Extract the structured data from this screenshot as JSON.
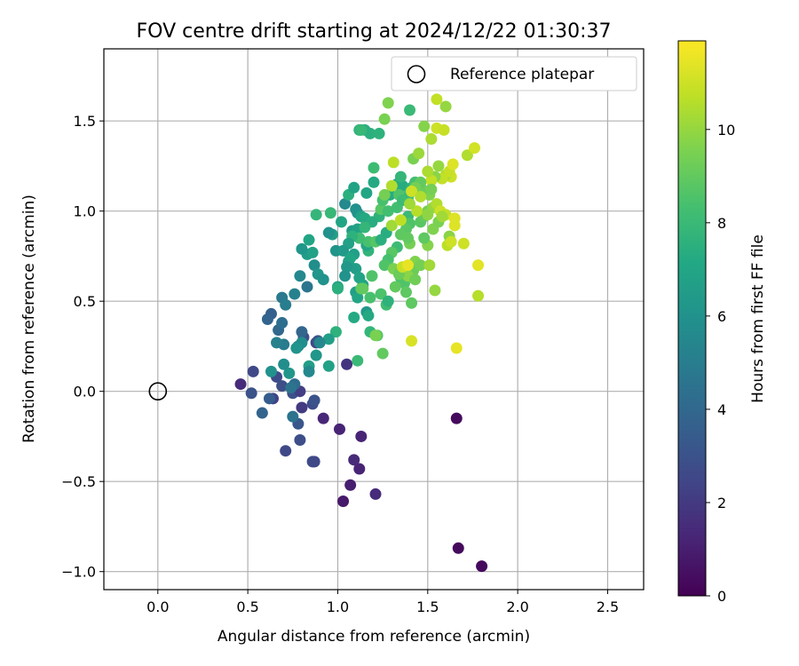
{
  "chart_data": {
    "type": "scatter",
    "title": "FOV centre drift starting at 2024/12/22 01:30:37",
    "xlabel": "Angular distance from reference (arcmin)",
    "ylabel": "Rotation from reference (arcmin)",
    "xlim": [
      -0.3,
      2.7
    ],
    "ylim": [
      -1.1,
      1.9
    ],
    "x_ticks": [
      0.0,
      0.5,
      1.0,
      1.5,
      2.0,
      2.5
    ],
    "x_tick_labels": [
      "0.0",
      "0.5",
      "1.0",
      "1.5",
      "2.0",
      "2.5"
    ],
    "y_ticks": [
      -1.0,
      -0.5,
      0.0,
      0.5,
      1.0,
      1.5
    ],
    "y_tick_labels": [
      "−1.0",
      "−0.5",
      "0.0",
      "0.5",
      "1.0",
      "1.5"
    ],
    "grid": true,
    "legend": {
      "placement": "upper-right",
      "entries": [
        {
          "label": "Reference platepar",
          "marker": "open-circle"
        }
      ]
    },
    "reference_point": {
      "x": 0.0,
      "y": 0.0
    },
    "colorbar": {
      "label": "Hours from first FF file",
      "colormap": "viridis",
      "range": [
        0,
        11.9
      ],
      "ticks": [
        0,
        2,
        4,
        6,
        8,
        10
      ],
      "tick_labels": [
        "0",
        "2",
        "4",
        "6",
        "8",
        "10"
      ]
    },
    "series": [
      {
        "marker": "filled-circle",
        "points": [
          [
            1.66,
            -0.15,
            0.3
          ],
          [
            1.67,
            -0.87,
            0.3
          ],
          [
            1.8,
            -0.97,
            0.3
          ],
          [
            1.03,
            -0.61,
            0.8
          ],
          [
            1.07,
            -0.52,
            1.0
          ],
          [
            1.12,
            -0.43,
            1.2
          ],
          [
            1.09,
            -0.38,
            1.4
          ],
          [
            1.21,
            -0.57,
            1.5
          ],
          [
            1.13,
            -0.25,
            1.2
          ],
          [
            1.01,
            -0.21,
            1.2
          ],
          [
            0.92,
            -0.15,
            1.3
          ],
          [
            1.05,
            0.15,
            1.8
          ],
          [
            0.46,
            0.04,
            1.5
          ],
          [
            0.53,
            0.11,
            2.6
          ],
          [
            0.52,
            -0.01,
            3.0
          ],
          [
            0.64,
            -0.04,
            2.3
          ],
          [
            0.66,
            0.08,
            2.7
          ],
          [
            0.69,
            0.03,
            2.8
          ],
          [
            0.75,
            -0.01,
            2.9
          ],
          [
            0.79,
            0.0,
            2.2
          ],
          [
            0.8,
            -0.09,
            2.0
          ],
          [
            0.86,
            -0.07,
            2.7
          ],
          [
            0.87,
            -0.05,
            3.0
          ],
          [
            0.78,
            -0.18,
            3.2
          ],
          [
            0.79,
            -0.27,
            2.8
          ],
          [
            0.71,
            -0.33,
            2.6
          ],
          [
            0.86,
            -0.39,
            2.8
          ],
          [
            0.87,
            -0.39,
            2.6
          ],
          [
            0.62,
            -0.04,
            3.5
          ],
          [
            0.58,
            -0.12,
            3.8
          ],
          [
            0.75,
            -0.14,
            4.5
          ],
          [
            0.76,
            0.04,
            4.2
          ],
          [
            0.88,
            0.27,
            2.6
          ],
          [
            0.89,
            0.28,
            3.0
          ],
          [
            0.81,
            0.3,
            2.8
          ],
          [
            0.8,
            0.33,
            3.9
          ],
          [
            0.74,
            0.02,
            4.5
          ],
          [
            0.78,
            0.25,
            4.8
          ],
          [
            0.7,
            0.26,
            4.9
          ],
          [
            0.67,
            0.34,
            4.0
          ],
          [
            0.69,
            0.38,
            4.3
          ],
          [
            0.63,
            0.43,
            3.6
          ],
          [
            0.61,
            0.4,
            3.8
          ],
          [
            0.69,
            0.52,
            4.8
          ],
          [
            0.71,
            0.48,
            5.0
          ],
          [
            0.76,
            0.54,
            5.2
          ],
          [
            0.83,
            0.58,
            4.6
          ],
          [
            0.79,
            0.64,
            5.5
          ],
          [
            0.87,
            0.7,
            5.8
          ],
          [
            0.89,
            0.65,
            6.2
          ],
          [
            0.92,
            0.62,
            6.0
          ],
          [
            0.83,
            0.76,
            6.5
          ],
          [
            0.86,
            0.77,
            6.8
          ],
          [
            0.84,
            0.84,
            7.0
          ],
          [
            0.8,
            0.79,
            6.2
          ],
          [
            0.88,
            0.98,
            7.8
          ],
          [
            0.96,
            0.99,
            7.9
          ],
          [
            0.97,
            0.87,
            6.6
          ],
          [
            0.95,
            0.88,
            6.0
          ],
          [
            0.99,
            0.78,
            6.1
          ],
          [
            1.0,
            0.58,
            6.9
          ],
          [
            0.99,
            0.33,
            7.6
          ],
          [
            0.95,
            0.29,
            6.6
          ],
          [
            0.95,
            0.14,
            6.8
          ],
          [
            0.9,
            0.27,
            5.5
          ],
          [
            0.88,
            0.2,
            6.2
          ],
          [
            0.84,
            0.14,
            6.6
          ],
          [
            0.84,
            0.11,
            5.5
          ],
          [
            0.8,
            0.27,
            5.8
          ],
          [
            0.77,
            0.24,
            6.1
          ],
          [
            0.73,
            0.1,
            6.2
          ],
          [
            0.7,
            0.15,
            5.8
          ],
          [
            0.66,
            0.27,
            5.2
          ],
          [
            0.63,
            0.11,
            6.0
          ],
          [
            1.04,
            1.04,
            5.6
          ],
          [
            1.06,
            1.09,
            7.5
          ],
          [
            1.09,
            1.13,
            6.9
          ],
          [
            1.15,
            1.45,
            7.4
          ],
          [
            1.18,
            1.43,
            7.5
          ],
          [
            1.23,
            1.43,
            7.6
          ],
          [
            1.12,
            1.45,
            7.6
          ],
          [
            1.13,
            1.45,
            7.9
          ],
          [
            1.2,
            1.24,
            8.1
          ],
          [
            1.16,
            1.1,
            7.0
          ],
          [
            1.2,
            1.16,
            7.2
          ],
          [
            1.1,
            1.01,
            5.9
          ],
          [
            1.11,
            0.99,
            6.0
          ],
          [
            1.13,
            0.97,
            6.9
          ],
          [
            1.15,
            0.96,
            7.2
          ],
          [
            1.08,
            0.89,
            6.5
          ],
          [
            1.11,
            0.9,
            6.8
          ],
          [
            1.09,
            0.76,
            6.7
          ],
          [
            1.06,
            0.72,
            6.5
          ],
          [
            1.1,
            0.68,
            6.6
          ],
          [
            1.12,
            0.63,
            6.9
          ],
          [
            1.14,
            0.59,
            7.0
          ],
          [
            1.1,
            0.55,
            6.6
          ],
          [
            1.11,
            0.52,
            7.0
          ],
          [
            1.16,
            0.44,
            6.3
          ],
          [
            1.17,
            0.42,
            7.2
          ],
          [
            1.18,
            0.33,
            7.8
          ],
          [
            1.09,
            0.41,
            7.2
          ],
          [
            1.11,
            0.17,
            8.0
          ],
          [
            1.13,
            0.57,
            9.0
          ],
          [
            1.18,
            0.52,
            8.4
          ],
          [
            1.19,
            0.64,
            8.6
          ],
          [
            1.17,
            0.78,
            7.7
          ],
          [
            1.16,
            0.81,
            7.0
          ],
          [
            1.17,
            0.83,
            8.4
          ],
          [
            1.21,
            0.83,
            8.7
          ],
          [
            1.24,
            0.84,
            7.5
          ],
          [
            1.27,
            0.88,
            7.4
          ],
          [
            1.23,
            0.97,
            7.6
          ],
          [
            1.24,
            1.01,
            8.8
          ],
          [
            1.28,
            1.0,
            8.3
          ],
          [
            1.33,
            1.02,
            8.3
          ],
          [
            1.25,
            1.06,
            8.4
          ],
          [
            1.29,
            1.09,
            7.3
          ],
          [
            1.33,
            1.15,
            7.1
          ],
          [
            1.36,
            1.14,
            7.3
          ],
          [
            1.35,
            1.19,
            7.8
          ],
          [
            1.34,
            1.09,
            8.6
          ],
          [
            1.36,
            1.06,
            8.1
          ],
          [
            1.39,
            1.07,
            8.2
          ],
          [
            1.4,
            1.1,
            8.0
          ],
          [
            1.41,
            1.13,
            7.5
          ],
          [
            1.43,
            1.16,
            8.3
          ],
          [
            1.39,
            0.97,
            8.0
          ],
          [
            1.4,
            0.93,
            8.6
          ],
          [
            1.38,
            0.9,
            8.8
          ],
          [
            1.35,
            0.87,
            8.9
          ],
          [
            1.33,
            0.8,
            8.1
          ],
          [
            1.3,
            0.77,
            8.8
          ],
          [
            1.28,
            0.73,
            8.4
          ],
          [
            1.26,
            0.7,
            8.6
          ],
          [
            1.31,
            0.68,
            9.5
          ],
          [
            1.35,
            0.63,
            8.4
          ],
          [
            1.37,
            0.6,
            8.6
          ],
          [
            1.32,
            0.58,
            9.0
          ],
          [
            1.38,
            0.55,
            8.9
          ],
          [
            1.24,
            0.54,
            8.5
          ],
          [
            1.27,
            0.48,
            8.2
          ],
          [
            1.28,
            0.5,
            7.6
          ],
          [
            1.22,
            0.31,
            8.7
          ],
          [
            1.21,
            0.31,
            9.5
          ],
          [
            1.25,
            0.21,
            9.0
          ],
          [
            1.41,
            0.49,
            8.9
          ],
          [
            1.43,
            0.72,
            9.6
          ],
          [
            1.42,
            0.67,
            9.2
          ],
          [
            1.46,
            0.7,
            9.4
          ],
          [
            1.4,
            0.82,
            9.4
          ],
          [
            1.39,
            0.85,
            9.0
          ],
          [
            1.39,
            0.64,
            9.8
          ],
          [
            1.43,
            0.62,
            9.3
          ],
          [
            1.51,
            0.7,
            10.2
          ],
          [
            1.54,
            0.56,
            10.0
          ],
          [
            1.41,
            0.28,
            11.2
          ],
          [
            1.66,
            0.24,
            11.5
          ],
          [
            1.5,
            0.81,
            9.7
          ],
          [
            1.48,
            0.85,
            8.9
          ],
          [
            1.53,
            0.9,
            9.6
          ],
          [
            1.46,
            0.94,
            8.8
          ],
          [
            1.48,
            0.97,
            9.0
          ],
          [
            1.5,
            1.0,
            9.4
          ],
          [
            1.53,
            1.02,
            10.0
          ],
          [
            1.55,
            1.04,
            10.5
          ],
          [
            1.57,
            1.0,
            11.0
          ],
          [
            1.6,
            0.98,
            10.8
          ],
          [
            1.62,
            0.86,
            9.8
          ],
          [
            1.61,
            0.81,
            10.7
          ],
          [
            1.63,
            0.83,
            11.0
          ],
          [
            1.65,
            0.92,
            11.3
          ],
          [
            1.65,
            0.96,
            11.3
          ],
          [
            1.7,
            0.82,
            11.0
          ],
          [
            1.78,
            0.7,
            11.4
          ],
          [
            1.78,
            0.53,
            10.6
          ],
          [
            1.63,
            1.19,
            11.0
          ],
          [
            1.6,
            1.2,
            10.4
          ],
          [
            1.62,
            1.22,
            10.9
          ],
          [
            1.58,
            1.18,
            10.8
          ],
          [
            1.56,
            1.25,
            10.0
          ],
          [
            1.54,
            1.19,
            9.8
          ],
          [
            1.52,
            1.17,
            10.8
          ],
          [
            1.5,
            1.22,
            10.4
          ],
          [
            1.51,
            1.09,
            9.6
          ],
          [
            1.47,
            1.12,
            9.2
          ],
          [
            1.46,
            1.16,
            9.0
          ],
          [
            1.43,
            1.13,
            9.4
          ],
          [
            1.44,
            1.0,
            10.6
          ],
          [
            1.4,
            1.04,
            10.2
          ],
          [
            1.41,
            1.11,
            11.0
          ],
          [
            1.52,
            1.4,
            10.4
          ],
          [
            1.55,
            1.46,
            11.0
          ],
          [
            1.59,
            1.45,
            10.9
          ],
          [
            1.6,
            1.58,
            10.0
          ],
          [
            1.55,
            1.62,
            10.8
          ],
          [
            1.48,
            1.47,
            9.7
          ],
          [
            1.42,
            1.29,
            9.5
          ],
          [
            1.45,
            1.32,
            10.1
          ],
          [
            1.4,
            1.56,
            8.0
          ],
          [
            1.28,
            1.6,
            9.6
          ],
          [
            1.26,
            1.51,
            9.5
          ],
          [
            1.31,
            1.27,
            10.7
          ],
          [
            1.3,
            1.14,
            10.5
          ],
          [
            1.72,
            1.31,
            10.5
          ],
          [
            1.76,
            1.35,
            11.1
          ],
          [
            1.64,
            1.26,
            11.3
          ],
          [
            1.26,
            1.09,
            9.4
          ],
          [
            1.19,
            0.94,
            7.4
          ],
          [
            1.15,
            0.91,
            7.8
          ],
          [
            1.12,
            0.85,
            8.2
          ],
          [
            1.08,
            0.86,
            7.6
          ],
          [
            1.06,
            0.82,
            6.8
          ],
          [
            1.03,
            0.78,
            6.4
          ],
          [
            1.07,
            0.74,
            7.0
          ],
          [
            1.05,
            0.69,
            6.3
          ],
          [
            1.04,
            0.64,
            6.0
          ],
          [
            1.02,
            0.94,
            7.0
          ],
          [
            1.0,
            0.57,
            7.5
          ],
          [
            1.14,
            0.57,
            9.0
          ],
          [
            1.34,
            0.65,
            9.2
          ],
          [
            1.36,
            0.69,
            10.9
          ],
          [
            1.39,
            0.7,
            11.5
          ],
          [
            1.3,
            0.92,
            10.2
          ],
          [
            1.35,
            0.95,
            10.7
          ],
          [
            1.5,
            0.98,
            9.9
          ],
          [
            1.56,
            0.94,
            9.5
          ],
          [
            1.58,
            0.97,
            10.2
          ],
          [
            1.46,
            1.08,
            10.5
          ],
          [
            1.52,
            1.12,
            9.4
          ]
        ]
      }
    ]
  }
}
